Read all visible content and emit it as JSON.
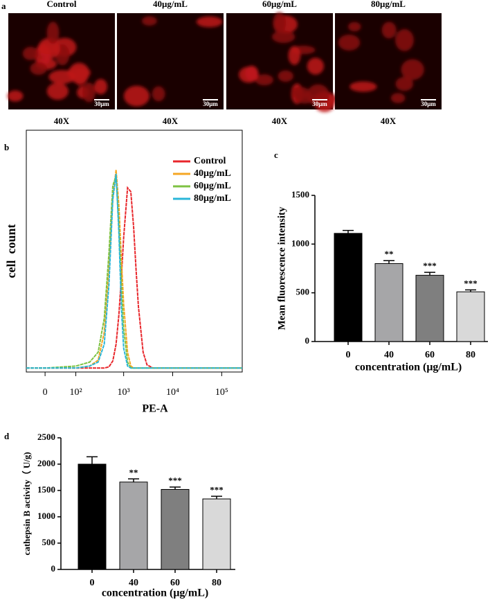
{
  "image_panel": {
    "label": "a",
    "images": [
      {
        "title": "Control",
        "scale_bar": "30μm",
        "magnification": "40X"
      },
      {
        "title": "40μg/mL",
        "scale_bar": "30μm",
        "magnification": "40X"
      },
      {
        "title": "60μg/mL",
        "scale_bar": "30μm",
        "magnification": "40X"
      },
      {
        "title": "80μg/mL",
        "scale_bar": "30μm",
        "magnification": "40X"
      }
    ]
  },
  "chart_data": [
    {
      "type": "line",
      "label": "b",
      "xlabel": "PE-A",
      "ylabel": "cell  count",
      "xscale": "biexponential",
      "x": [
        -50,
        0,
        100,
        200,
        300,
        400,
        500,
        600,
        700,
        800,
        900,
        1000,
        1200,
        1400,
        1600,
        1800,
        2000,
        2500,
        3000,
        4000,
        10000,
        100000,
        262144
      ],
      "xlim": [
        -50,
        262144
      ],
      "xticks": [
        0,
        {
          "value": 100,
          "label": "10²"
        },
        {
          "value": 1000,
          "label": "10³"
        },
        {
          "value": 10000,
          "label": "10⁴"
        },
        {
          "value": 100000,
          "label": "10⁵"
        }
      ],
      "ylim": [
        -2,
        120
      ],
      "legend": "upper right",
      "series": [
        {
          "name": "Control",
          "color": "#e8262b",
          "values": [
            0,
            0,
            0,
            0,
            0,
            0,
            0.6,
            3.6,
            12,
            27,
            46,
            66,
            91,
            89,
            71,
            49,
            31,
            8,
            1.6,
            0,
            0,
            0,
            0
          ]
        },
        {
          "name": "40μg/mL",
          "color": "#f5a623",
          "values": [
            0,
            0,
            0,
            1,
            4,
            18,
            50,
            86,
            100,
            82,
            55,
            32,
            8,
            1,
            0,
            0,
            0,
            0,
            0,
            0,
            0,
            0,
            0
          ]
        },
        {
          "name": "60μg/mL",
          "color": "#7dc242",
          "values": [
            0,
            0,
            1,
            3,
            8,
            25,
            58,
            92,
            97,
            72,
            42,
            20,
            3,
            0,
            0,
            0,
            0,
            0,
            0,
            0,
            0,
            0,
            0
          ]
        },
        {
          "name": "80μg/mL",
          "color": "#29b6d8",
          "values": [
            0,
            0,
            0,
            1,
            3,
            12,
            42,
            85,
            98,
            68,
            30,
            10,
            1,
            0,
            0,
            0,
            0,
            0,
            0,
            0,
            0,
            0,
            0
          ]
        }
      ]
    },
    {
      "type": "bar",
      "label": "c",
      "xlabel": "concentration (μg/mL)",
      "ylabel": "Mean fluorescence intensity",
      "categories": [
        "0",
        "40",
        "60",
        "80"
      ],
      "values": [
        1110,
        800,
        680,
        510
      ],
      "errors": [
        30,
        30,
        30,
        20
      ],
      "significance": [
        null,
        "**",
        "***",
        "***"
      ],
      "colors": [
        "#000000",
        "#a6a6a8",
        "#7f7f7f",
        "#d9d9d9"
      ],
      "ylim": [
        0,
        1500
      ],
      "yticks": [
        0,
        500,
        1000,
        1500
      ]
    },
    {
      "type": "bar",
      "label": "d",
      "xlabel": "concentration (μg/mL)",
      "ylabel": "cathepsin B activity（ U/g)",
      "categories": [
        "0",
        "40",
        "60",
        "80"
      ],
      "values": [
        2000,
        1660,
        1520,
        1340
      ],
      "errors": [
        140,
        60,
        45,
        50
      ],
      "significance": [
        null,
        "**",
        "***",
        "***"
      ],
      "colors": [
        "#000000",
        "#a6a6a8",
        "#7f7f7f",
        "#d9d9d9"
      ],
      "ylim": [
        0,
        2500
      ],
      "yticks": [
        0,
        500,
        1000,
        1500,
        2000,
        2500
      ]
    }
  ]
}
